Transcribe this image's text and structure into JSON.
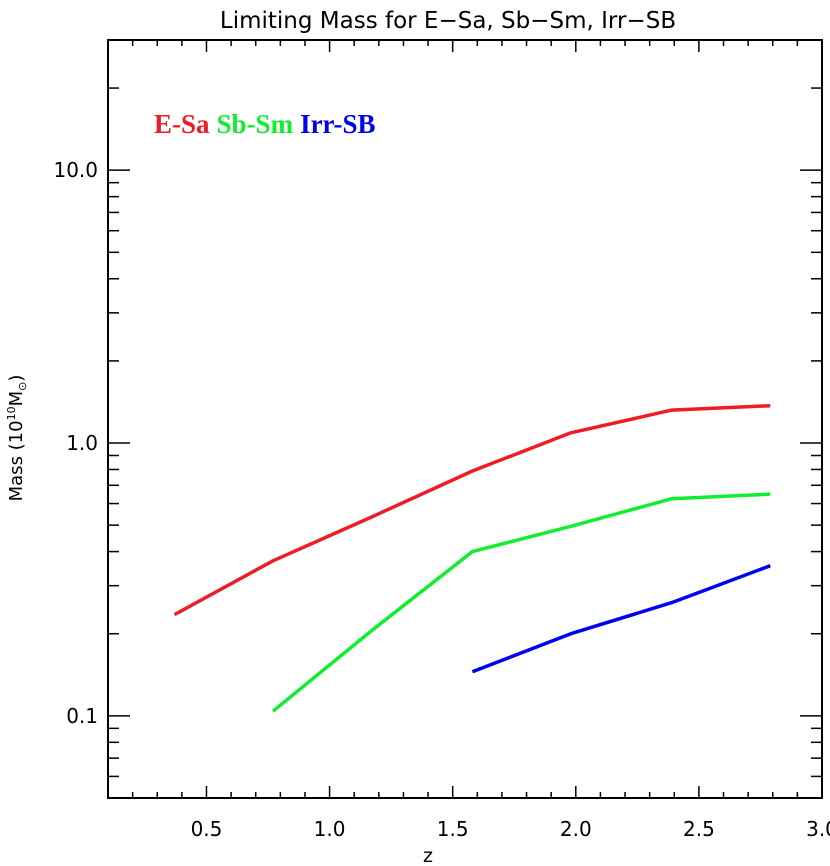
{
  "chart_data": {
    "type": "line",
    "title": "Limiting Mass for E−Sa, Sb−Sm, Irr−SB",
    "xlabel": "z",
    "ylabel": {
      "main": "Mass (10",
      "exponent": "10",
      "unit": "M",
      "subscript": "⊙",
      "close": ")"
    },
    "xscale": "linear",
    "yscale": "log",
    "xlim": [
      0.1,
      3.0
    ],
    "ylim": [
      0.05,
      30
    ],
    "grid": false,
    "legend_placement": "top-left",
    "x_ticks": [
      {
        "value": 0.5,
        "label": "0.5"
      },
      {
        "value": 1.0,
        "label": "1.0"
      },
      {
        "value": 1.5,
        "label": "1.5"
      },
      {
        "value": 2.0,
        "label": "2.0"
      },
      {
        "value": 2.5,
        "label": "2.5"
      },
      {
        "value": 3.0,
        "label": "3.0"
      }
    ],
    "y_ticks": [
      {
        "value": 0.1,
        "label": "0.1"
      },
      {
        "value": 1.0,
        "label": "1.0"
      },
      {
        "value": 10.0,
        "label": "10.0"
      }
    ],
    "series": [
      {
        "name": "E-Sa",
        "color": "#ee1c25",
        "x": [
          0.37,
          0.77,
          1.17,
          1.58,
          1.98,
          2.39,
          2.79
        ],
        "y": [
          0.235,
          0.37,
          0.535,
          0.79,
          1.09,
          1.32,
          1.37
        ]
      },
      {
        "name": "Sb-Sm",
        "color": "#10ee30",
        "x": [
          0.77,
          1.17,
          1.58,
          1.98,
          2.39,
          2.79
        ],
        "y": [
          0.104,
          0.205,
          0.4,
          0.495,
          0.625,
          0.65
        ]
      },
      {
        "name": "Irr-SB",
        "color": "#0000ee",
        "x": [
          1.58,
          1.98,
          2.39,
          2.79
        ],
        "y": [
          0.145,
          0.2,
          0.26,
          0.355
        ]
      }
    ]
  }
}
